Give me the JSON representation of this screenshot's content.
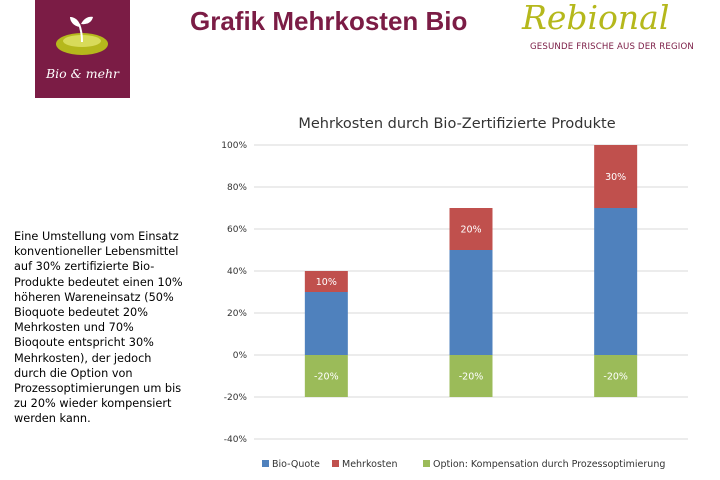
{
  "header": {
    "title": "Grafik Mehrkosten Bio",
    "logo_text": "Bio & mehr",
    "brand_name": "Rebional",
    "brand_tagline": "GESUNDE FRISCHE AUS DER REGION"
  },
  "side_text": "Eine Umstellung vom Einsatz\nkonventioneller Lebensmittel\nauf 30% zertifizierte Bio-\nProdukte bedeutet einen 10%\nhöheren Wareneinsatz (50%\nBioquote bedeutet 20%\nMehrkosten und 70%\nBioqoute entspricht 30%\nMehrkosten), der jedoch\ndurch die Option von\nProzessoptimierungen um bis\nzu 20% wieder kompensiert\nwerden kann.",
  "colors": {
    "brand": "#7b1c45",
    "brand_accent": "#b5b81c",
    "bio_quote": "#4f81bd",
    "mehrkosten": "#c0504d",
    "option": "#9bbb59"
  },
  "chart_data": {
    "type": "bar",
    "stacked": true,
    "title": "Mehrkosten durch Bio-Zertifizierte Produkte",
    "xlabel": "",
    "ylabel": "",
    "ylim": [
      -40,
      100
    ],
    "y_ticks": [
      "100%",
      "80%",
      "60%",
      "40%",
      "20%",
      "0%",
      "-20%",
      "-40%"
    ],
    "y_tick_values": [
      100,
      80,
      60,
      40,
      20,
      0,
      -20,
      -40
    ],
    "grid": true,
    "legend_position": "bottom",
    "categories": [
      "",
      "",
      ""
    ],
    "series": [
      {
        "name": "Bio-Quote",
        "values": [
          30,
          50,
          70
        ],
        "labels": [
          "",
          "",
          ""
        ],
        "color": "#4f81bd"
      },
      {
        "name": "Mehrkosten",
        "values": [
          10,
          20,
          30
        ],
        "labels": [
          "10%",
          "20%",
          "30%"
        ],
        "color": "#c0504d"
      },
      {
        "name": "Option: Kompensation durch Prozessoptimierung",
        "values": [
          -20,
          -20,
          -20
        ],
        "labels": [
          "-20%",
          "-20%",
          "-20%"
        ],
        "color": "#9bbb59"
      }
    ]
  }
}
